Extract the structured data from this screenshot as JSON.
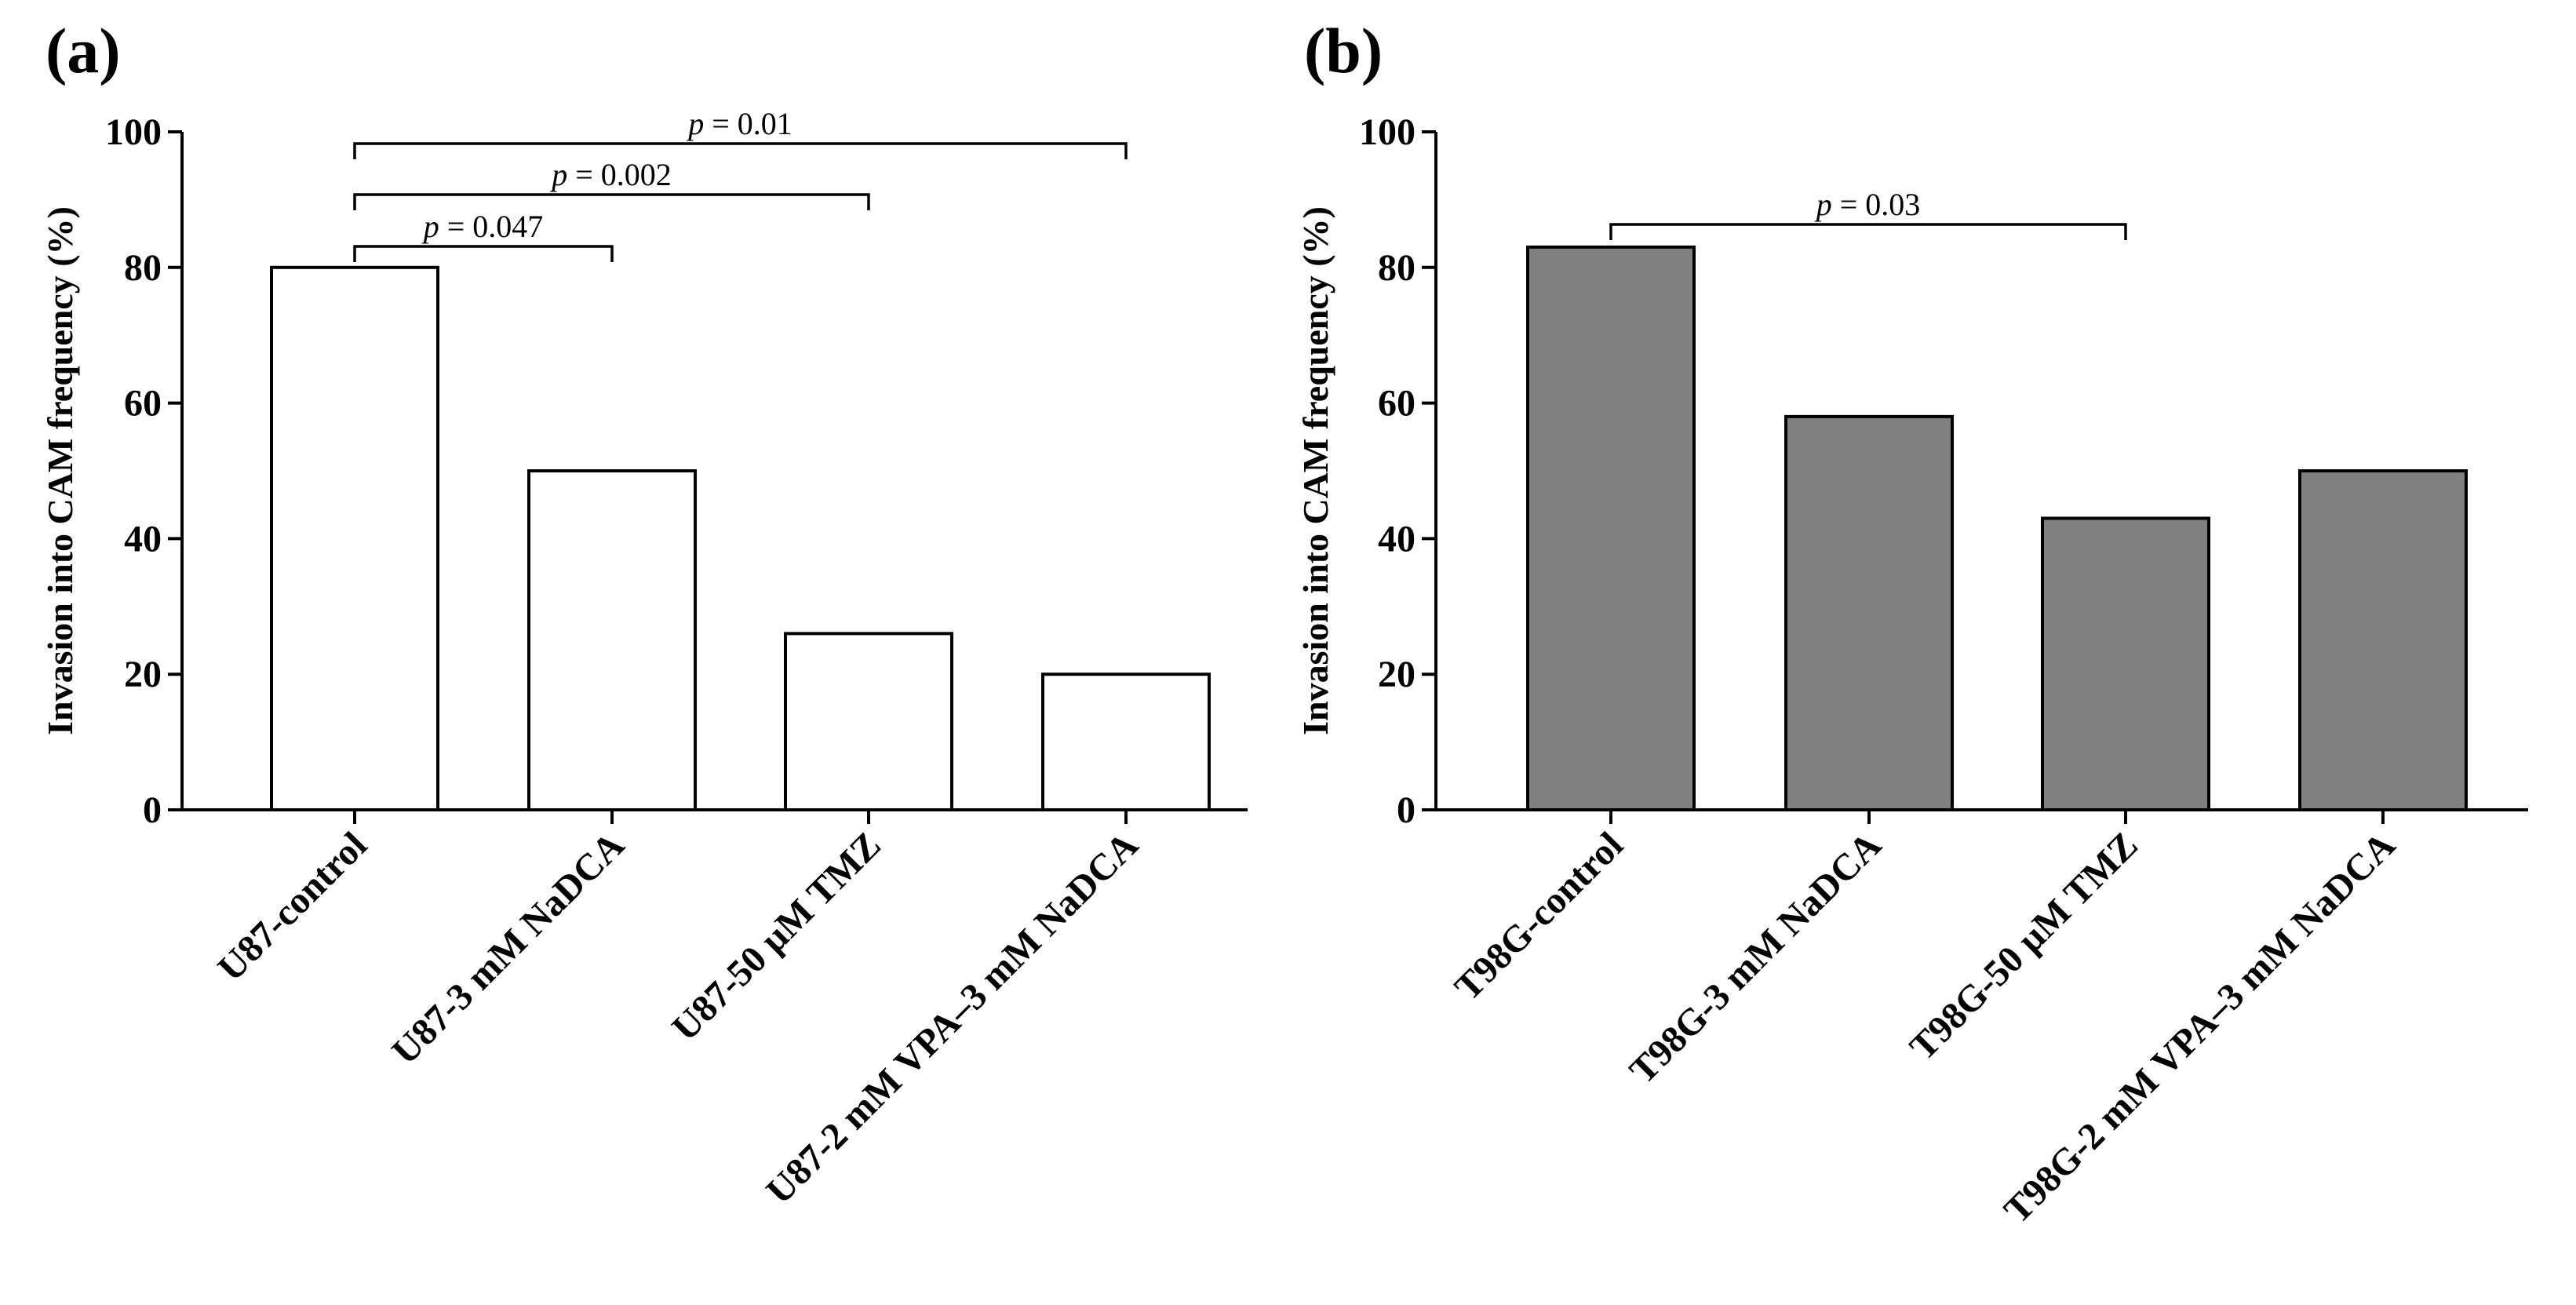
{
  "chart_data": [
    {
      "panel": "(a)",
      "type": "bar",
      "ylabel": "Invasion into CAM frequency (%)",
      "ylim": [
        0,
        100
      ],
      "yticks": [
        0,
        20,
        40,
        60,
        80,
        100
      ],
      "categories": [
        "U87-control",
        "U87-3 mM NaDCA",
        "U87-50 µM TMZ",
        "U87-2 mM VPA–3 mM NaDCA"
      ],
      "values": [
        80,
        50,
        26,
        20
      ],
      "bar_color": "#ffffff",
      "significance": [
        {
          "p_prefix": "p",
          "p_suffix": " = 0.047",
          "from": 0,
          "to": 1
        },
        {
          "p_prefix": "p",
          "p_suffix": " = 0.002",
          "from": 0,
          "to": 2
        },
        {
          "p_prefix": "p",
          "p_suffix": " = 0.01",
          "from": 0,
          "to": 3
        }
      ]
    },
    {
      "panel": "(b)",
      "type": "bar",
      "ylabel": "Invasion into CAM frequency (%)",
      "ylim": [
        0,
        100
      ],
      "yticks": [
        0,
        20,
        40,
        60,
        80,
        100
      ],
      "categories": [
        "T98G-control",
        "T98G-3 mM NaDCA",
        "T98G-50 µM TMZ",
        "T98G-2 mM VPA–3 mM NaDCA"
      ],
      "values": [
        83,
        58,
        43,
        50
      ],
      "bar_color": "#808080",
      "significance": [
        {
          "p_prefix": "p",
          "p_suffix": " = 0.03",
          "from": 0,
          "to": 2
        }
      ]
    }
  ]
}
